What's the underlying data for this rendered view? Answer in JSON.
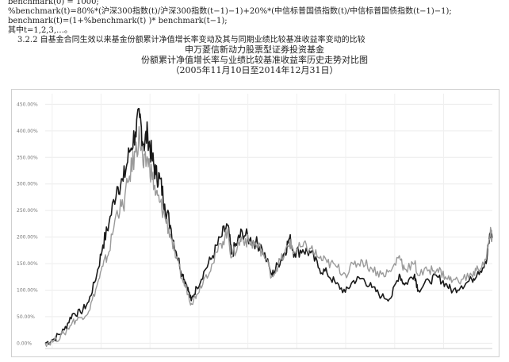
{
  "doc": {
    "line_top": "benchmark(0) = 1000;",
    "line_formula": "%benchmark(t)=80%*(沪深300指数(t)/沪深300指数(t−1)−1)+20%*(中信标普国债指数(t)/中信标普国债指数(t−1)−1);",
    "line_recursion": "benchmark(t)=(1+%benchmark(t) )*  benchmark(t−1);",
    "line_index": "其中t=1,2,3,…。",
    "section_heading": "3.2.2  自基金合同生效以来基金份额累计净值增长率变动及其与同期业绩比较基准收益率变动的比较",
    "fund_name": "申万菱信新动力股票型证券投资基金",
    "chart_caption": "份额累计净值增长率与业绩比较基准收益率历史走势对比图",
    "date_range": "（2005年11月10日至2014年12月31日）"
  },
  "chart_data": {
    "type": "line",
    "title": "份额累计净值增长率与业绩比较基准收益率历史走势对比图",
    "subtitle": "（2005年11月10日至2014年12月31日）",
    "xlabel": "",
    "ylabel": "",
    "x_start": "2005-11-10",
    "x_end": "2014-12-31",
    "ylim": [
      -10,
      470
    ],
    "y_ticks": [
      0,
      50,
      100,
      150,
      200,
      250,
      300,
      350,
      400,
      450
    ],
    "y_tick_labels": [
      "0.00%",
      "50.00%",
      "100.00%",
      "150.00%",
      "200.00%",
      "250.00%",
      "300.00%",
      "350.00%",
      "400.00%",
      "450.00%"
    ],
    "grid": true,
    "legend": "none",
    "series": [
      {
        "color": "#1a1a1a",
        "width": 1.6,
        "points": [
          [
            "2005-11-10",
            0
          ],
          [
            "2006-01-15",
            8
          ],
          [
            "2006-04-01",
            25
          ],
          [
            "2006-06-01",
            55
          ],
          [
            "2006-08-01",
            58
          ],
          [
            "2006-10-01",
            78
          ],
          [
            "2006-12-01",
            130
          ],
          [
            "2007-01-15",
            185
          ],
          [
            "2007-03-01",
            225
          ],
          [
            "2007-05-01",
            295
          ],
          [
            "2007-06-15",
            305
          ],
          [
            "2007-08-01",
            360
          ],
          [
            "2007-09-15",
            398
          ],
          [
            "2007-10-16",
            425
          ],
          [
            "2007-11-15",
            375
          ],
          [
            "2007-12-15",
            395
          ],
          [
            "2008-01-15",
            350
          ],
          [
            "2008-02-15",
            318
          ],
          [
            "2008-03-15",
            310
          ],
          [
            "2008-04-20",
            262
          ],
          [
            "2008-06-01",
            222
          ],
          [
            "2008-07-15",
            172
          ],
          [
            "2008-09-01",
            130
          ],
          [
            "2008-10-01",
            110
          ],
          [
            "2008-11-04",
            80
          ],
          [
            "2008-12-15",
            105
          ],
          [
            "2009-02-15",
            138
          ],
          [
            "2009-04-15",
            165
          ],
          [
            "2009-06-15",
            200
          ],
          [
            "2009-08-03",
            222
          ],
          [
            "2009-09-01",
            168
          ],
          [
            "2009-10-15",
            190
          ],
          [
            "2009-11-20",
            210
          ],
          [
            "2010-01-15",
            195
          ],
          [
            "2010-03-01",
            190
          ],
          [
            "2010-04-15",
            180
          ],
          [
            "2010-07-01",
            128
          ],
          [
            "2010-08-15",
            150
          ],
          [
            "2010-10-01",
            170
          ],
          [
            "2010-11-08",
            198
          ],
          [
            "2010-12-15",
            170
          ],
          [
            "2011-02-15",
            176
          ],
          [
            "2011-04-15",
            170
          ],
          [
            "2011-06-20",
            140
          ],
          [
            "2011-08-15",
            132
          ],
          [
            "2011-10-20",
            112
          ],
          [
            "2011-12-30",
            96
          ],
          [
            "2012-03-01",
            118
          ],
          [
            "2012-05-05",
            122
          ],
          [
            "2012-07-15",
            105
          ],
          [
            "2012-09-25",
            88
          ],
          [
            "2012-12-03",
            85
          ],
          [
            "2013-02-05",
            130
          ],
          [
            "2013-03-15",
            110
          ],
          [
            "2013-05-30",
            130
          ],
          [
            "2013-06-25",
            100
          ],
          [
            "2013-09-15",
            118
          ],
          [
            "2013-11-15",
            125
          ],
          [
            "2014-01-15",
            112
          ],
          [
            "2014-03-10",
            98
          ],
          [
            "2014-05-15",
            108
          ],
          [
            "2014-07-31",
            120
          ],
          [
            "2014-09-15",
            135
          ],
          [
            "2014-11-15",
            150
          ],
          [
            "2014-12-15",
            208
          ],
          [
            "2014-12-31",
            200
          ]
        ]
      },
      {
        "color": "#9a9a9a",
        "width": 1.4,
        "points": [
          [
            "2005-11-10",
            0
          ],
          [
            "2006-01-15",
            5
          ],
          [
            "2006-04-01",
            18
          ],
          [
            "2006-06-01",
            40
          ],
          [
            "2006-08-01",
            48
          ],
          [
            "2006-10-01",
            60
          ],
          [
            "2006-12-01",
            108
          ],
          [
            "2007-01-15",
            145
          ],
          [
            "2007-03-01",
            172
          ],
          [
            "2007-05-01",
            250
          ],
          [
            "2007-06-15",
            258
          ],
          [
            "2007-08-01",
            315
          ],
          [
            "2007-09-15",
            360
          ],
          [
            "2007-10-16",
            392
          ],
          [
            "2007-11-15",
            330
          ],
          [
            "2007-12-15",
            348
          ],
          [
            "2008-01-15",
            318
          ],
          [
            "2008-02-15",
            280
          ],
          [
            "2008-03-15",
            265
          ],
          [
            "2008-04-20",
            240
          ],
          [
            "2008-06-01",
            205
          ],
          [
            "2008-07-15",
            160
          ],
          [
            "2008-09-01",
            118
          ],
          [
            "2008-10-01",
            102
          ],
          [
            "2008-11-04",
            75
          ],
          [
            "2008-12-15",
            92
          ],
          [
            "2009-02-15",
            125
          ],
          [
            "2009-04-15",
            150
          ],
          [
            "2009-06-15",
            188
          ],
          [
            "2009-08-03",
            212
          ],
          [
            "2009-09-01",
            162
          ],
          [
            "2009-10-15",
            182
          ],
          [
            "2009-11-20",
            200
          ],
          [
            "2010-01-15",
            188
          ],
          [
            "2010-03-01",
            186
          ],
          [
            "2010-04-15",
            175
          ],
          [
            "2010-07-01",
            126
          ],
          [
            "2010-08-15",
            148
          ],
          [
            "2010-10-01",
            166
          ],
          [
            "2010-11-08",
            190
          ],
          [
            "2010-12-15",
            172
          ],
          [
            "2011-02-15",
            182
          ],
          [
            "2011-04-15",
            178
          ],
          [
            "2011-06-20",
            160
          ],
          [
            "2011-08-15",
            152
          ],
          [
            "2011-10-20",
            145
          ],
          [
            "2011-12-30",
            130
          ],
          [
            "2012-03-01",
            148
          ],
          [
            "2012-05-05",
            155
          ],
          [
            "2012-07-15",
            140
          ],
          [
            "2012-09-25",
            130
          ],
          [
            "2012-12-03",
            135
          ],
          [
            "2013-02-05",
            165
          ],
          [
            "2013-03-15",
            140
          ],
          [
            "2013-05-30",
            150
          ],
          [
            "2013-06-25",
            128
          ],
          [
            "2013-09-15",
            138
          ],
          [
            "2013-11-15",
            140
          ],
          [
            "2014-01-15",
            125
          ],
          [
            "2014-03-10",
            118
          ],
          [
            "2014-05-15",
            120
          ],
          [
            "2014-07-31",
            128
          ],
          [
            "2014-09-15",
            140
          ],
          [
            "2014-11-15",
            158
          ],
          [
            "2014-12-15",
            205
          ],
          [
            "2014-12-31",
            198
          ]
        ]
      }
    ]
  }
}
